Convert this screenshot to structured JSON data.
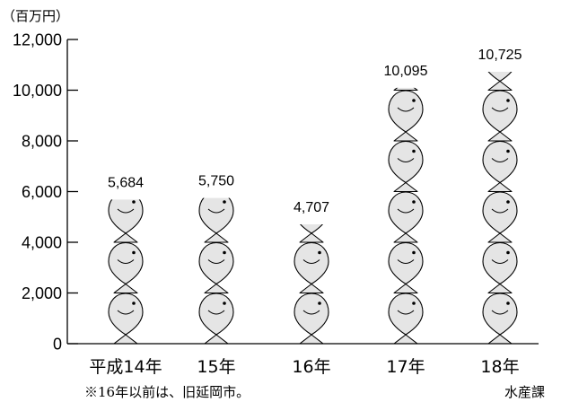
{
  "chart_data": {
    "type": "bar",
    "icon": "fish-icon",
    "ylabel": "（百万円）",
    "categories": [
      "平成14年",
      "15年",
      "16年",
      "17年",
      "18年"
    ],
    "values": [
      5684,
      5750,
      4707,
      10095,
      10725
    ],
    "value_labels": [
      "5,684",
      "5,750",
      "4,707",
      "10,095",
      "10,725"
    ],
    "ylim": [
      0,
      12000
    ],
    "yticks": [
      0,
      2000,
      4000,
      6000,
      8000,
      10000,
      12000
    ],
    "ytick_labels": [
      "0",
      "2,000",
      "4,000",
      "6,000",
      "8,000",
      "10,000",
      "12,000"
    ],
    "grid": false,
    "colors": {
      "fish_fill": "#e5e5e5",
      "outline": "#000000"
    }
  },
  "footnote": "※16年以前は、旧延岡市。",
  "source": "水産課"
}
